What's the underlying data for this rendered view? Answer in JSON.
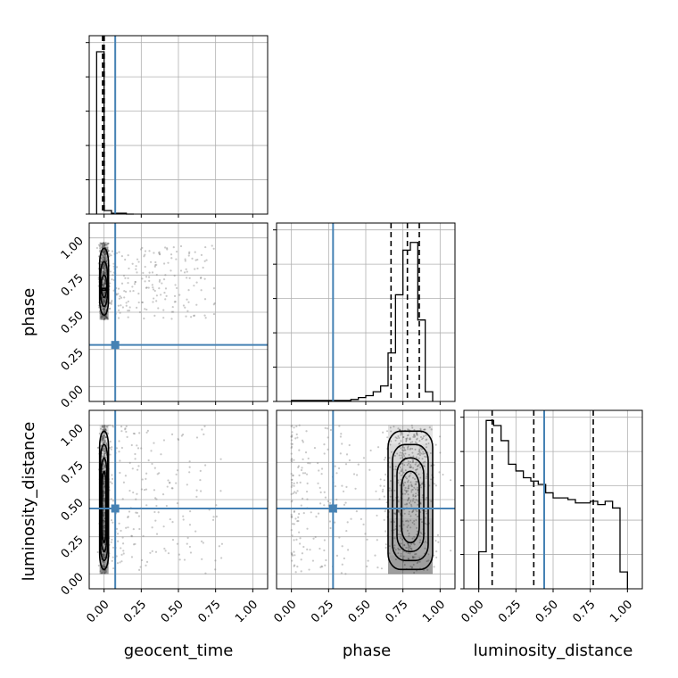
{
  "chart_data": {
    "type": "corner",
    "parameters": [
      "geocent_time",
      "phase",
      "luminosity_distance"
    ],
    "truths": {
      "geocent_time": 0.075,
      "phase": 0.28,
      "luminosity_distance": 0.44
    },
    "axis_range": [
      -0.1,
      1.1
    ],
    "ticks": [
      0.0,
      0.25,
      0.5,
      0.75,
      1.0
    ],
    "tick_labels": [
      "0.00",
      "0.25",
      "0.50",
      "0.75",
      "1.00"
    ],
    "grid": true,
    "colors": {
      "truth": "#4682b4",
      "hist": "#000000",
      "grid": "#b0b0b0",
      "density": "#000000"
    },
    "panels": [
      {
        "id": "geocent_time",
        "kind": "hist1d",
        "bin_edges": [
          -0.05,
          0.0,
          0.05,
          0.1,
          0.15,
          0.2
        ],
        "counts": [
          0.91,
          0.02,
          0.005,
          0.005,
          0.0
        ],
        "ymax": 1.0,
        "quantiles": [
          -0.01,
          -0.003,
          0.001
        ]
      },
      {
        "id": "phase",
        "kind": "hist1d",
        "bin_edges": [
          0.0,
          0.05,
          0.1,
          0.15,
          0.2,
          0.25,
          0.3,
          0.35,
          0.4,
          0.45,
          0.5,
          0.55,
          0.6,
          0.65,
          0.7,
          0.75,
          0.8,
          0.85,
          0.9,
          0.95
        ],
        "counts": [
          0.005,
          0.005,
          0.005,
          0.005,
          0.005,
          0.005,
          0.005,
          0.005,
          0.01,
          0.02,
          0.03,
          0.05,
          0.08,
          0.25,
          0.55,
          0.78,
          0.82,
          0.42,
          0.05
        ],
        "ymax": 0.92,
        "quantiles": [
          0.67,
          0.78,
          0.86
        ]
      },
      {
        "id": "luminosity_distance",
        "kind": "hist1d",
        "bin_edges": [
          0.0,
          0.05,
          0.1,
          0.15,
          0.2,
          0.25,
          0.3,
          0.35,
          0.4,
          0.45,
          0.5,
          0.55,
          0.6,
          0.65,
          0.7,
          0.75,
          0.8,
          0.85,
          0.9,
          0.95,
          1.0
        ],
        "counts": [
          0.22,
          1.0,
          0.97,
          0.88,
          0.74,
          0.7,
          0.66,
          0.64,
          0.62,
          0.57,
          0.54,
          0.54,
          0.53,
          0.51,
          0.51,
          0.52,
          0.5,
          0.52,
          0.48,
          0.1
        ],
        "ymax": 1.06,
        "quantiles": [
          0.09,
          0.37,
          0.77
        ]
      },
      {
        "id": "phase_vs_geocent_time",
        "kind": "density2d",
        "x": "geocent_time",
        "y": "phase",
        "core": {
          "x": [
            -0.03,
            0.03
          ],
          "y": [
            0.45,
            0.97
          ]
        },
        "scatter_region": {
          "x": [
            0.0,
            0.75
          ],
          "y": [
            0.45,
            0.95
          ]
        }
      },
      {
        "id": "luminosity_distance_vs_geocent_time",
        "kind": "density2d",
        "x": "geocent_time",
        "y": "luminosity_distance",
        "core": {
          "x": [
            -0.03,
            0.03
          ],
          "y": [
            0.0,
            1.0
          ]
        },
        "scatter_region": {
          "x": [
            0.0,
            0.8
          ],
          "y": [
            0.0,
            1.0
          ]
        }
      },
      {
        "id": "luminosity_distance_vs_phase",
        "kind": "density2d",
        "x": "phase",
        "y": "luminosity_distance",
        "core": {
          "x": [
            0.65,
            0.95
          ],
          "y": [
            0.0,
            1.0
          ]
        },
        "scatter_region": {
          "x": [
            0.0,
            1.0
          ],
          "y": [
            0.0,
            1.0
          ]
        }
      }
    ]
  }
}
